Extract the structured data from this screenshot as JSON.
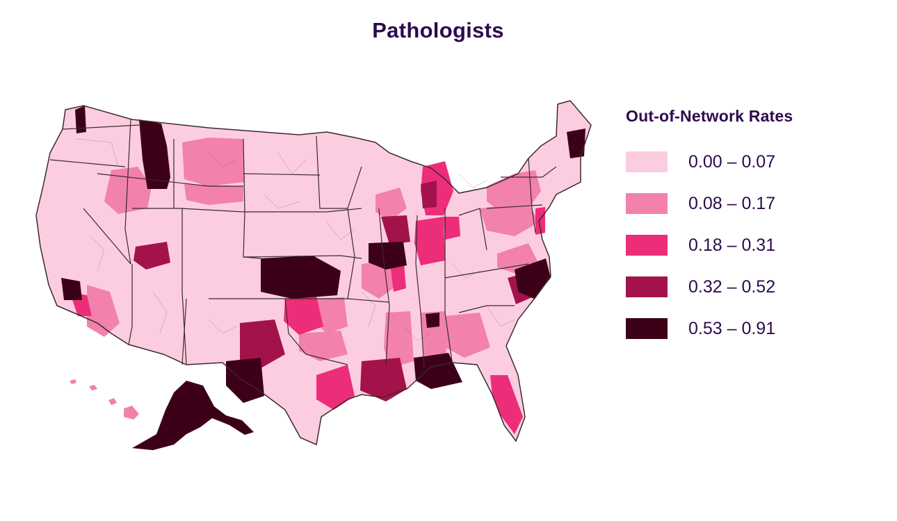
{
  "title": "Pathologists",
  "legend": {
    "title": "Out-of-Network Rates",
    "items": [
      {
        "label": "0.00 – 0.07",
        "color": "#fccde0"
      },
      {
        "label": "0.08 – 0.17",
        "color": "#f281ac"
      },
      {
        "label": "0.18 – 0.31",
        "color": "#ec2d7a"
      },
      {
        "label": "0.32 – 0.52",
        "color": "#a4124c"
      },
      {
        "label": "0.53 – 0.91",
        "color": "#3d0019"
      }
    ]
  },
  "colors": {
    "title_text": "#2d0a4e",
    "border": "#3a2a2a",
    "background": "#ffffff"
  }
}
